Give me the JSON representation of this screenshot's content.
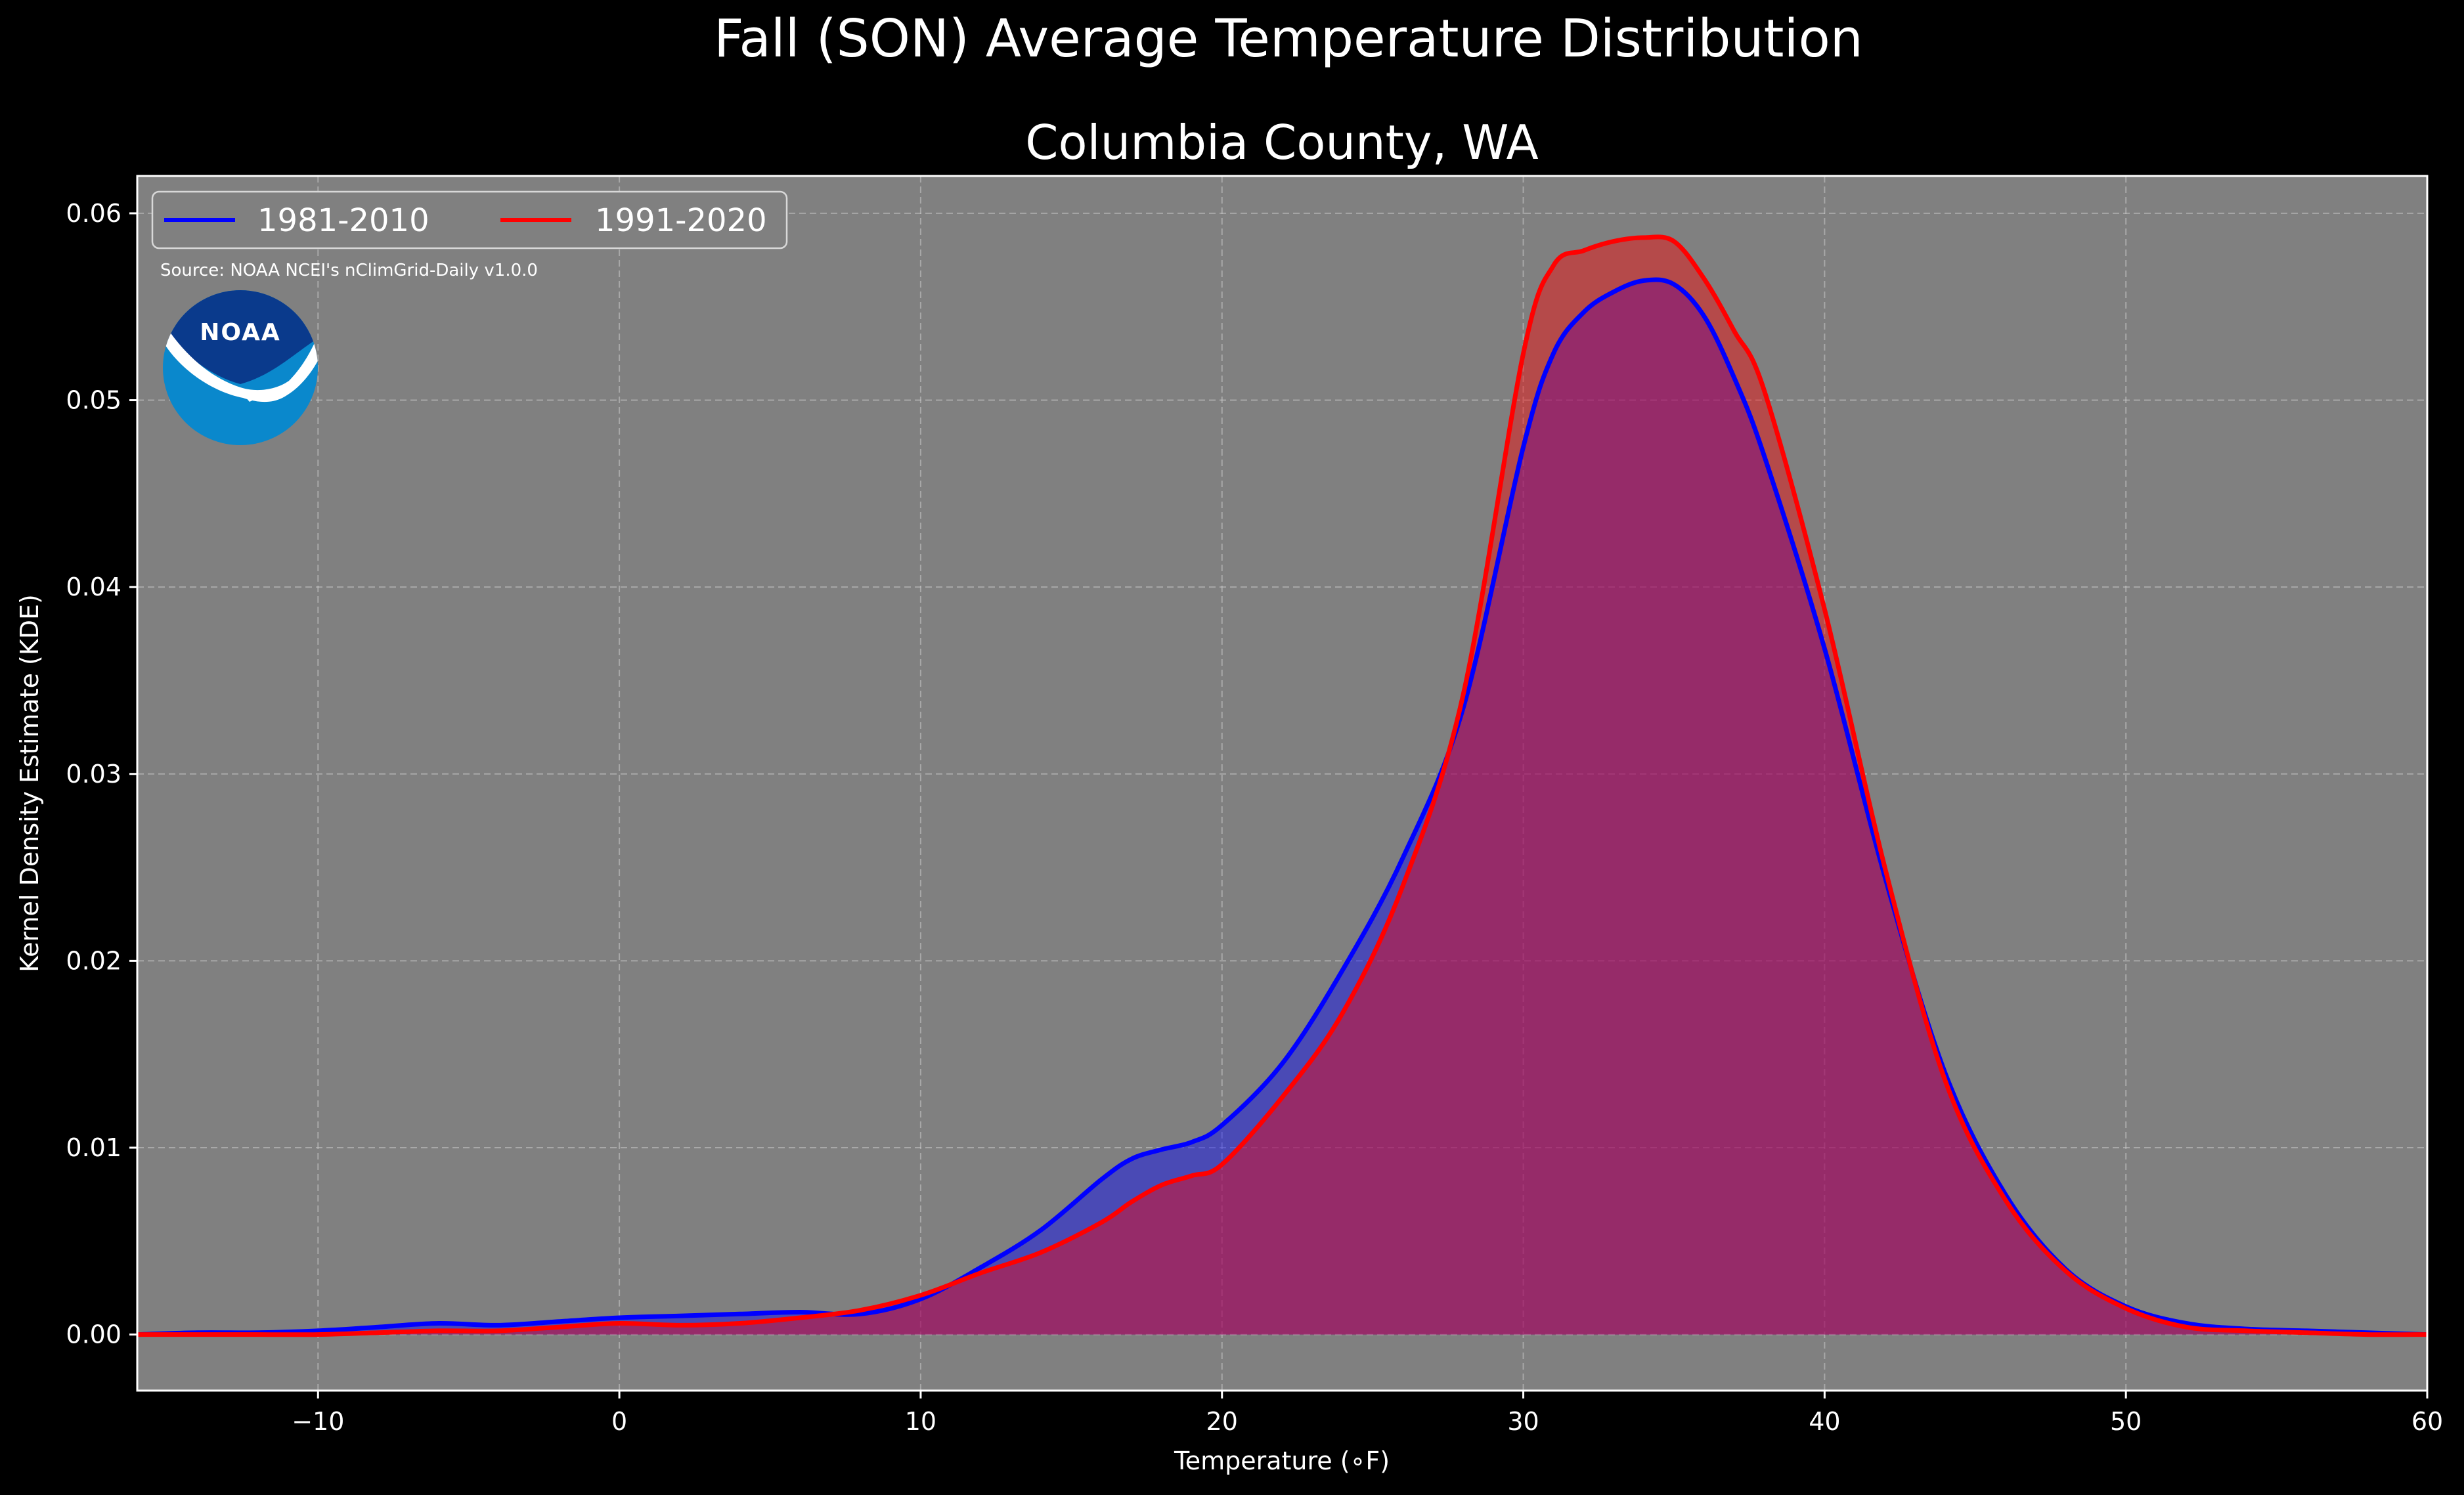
{
  "chart_data": {
    "type": "area",
    "suptitle": "Fall (SON) Average Temperature Distribution",
    "title": "Columbia County, WA",
    "xlabel": "Temperature (∘F)",
    "ylabel": "Kernel Density Estimate (KDE)",
    "xlim": [
      -16,
      60
    ],
    "ylim": [
      -0.003,
      0.062
    ],
    "xticks": [
      -10,
      0,
      10,
      20,
      30,
      40,
      50,
      60
    ],
    "xtick_labels": [
      "−10",
      "0",
      "10",
      "20",
      "30",
      "40",
      "50",
      "60"
    ],
    "yticks": [
      0.0,
      0.01,
      0.02,
      0.03,
      0.04,
      0.05,
      0.06
    ],
    "ytick_labels": [
      "0.00",
      "0.01",
      "0.02",
      "0.03",
      "0.04",
      "0.05",
      "0.06"
    ],
    "grid": true,
    "legend_placement": "top-left",
    "source": "Source: NOAA NCEI's nClimGrid-Daily v1.0.0",
    "logo_text": "NOAA",
    "colors": {
      "background": "#000000",
      "plot_background": "#808080",
      "series_1981": "#0000ff",
      "series_1991": "#ff0000",
      "logo_dark": "#0a3a8c",
      "logo_light": "#0a88cc"
    },
    "series": [
      {
        "name": "1981-2010",
        "color": "#0000ff",
        "x": [
          -16,
          -14,
          -12,
          -10,
          -8,
          -6,
          -4,
          -2,
          0,
          2,
          4,
          6,
          8,
          10,
          12,
          14,
          16,
          17,
          18,
          19,
          20,
          22,
          24,
          26,
          28,
          30,
          31,
          32,
          33,
          34,
          35,
          36,
          37,
          38,
          40,
          42,
          44,
          46,
          48,
          50,
          52,
          54,
          56,
          58,
          60
        ],
        "y": [
          0.0,
          0.0001,
          0.0001,
          0.0002,
          0.0004,
          0.0006,
          0.0005,
          0.0007,
          0.0009,
          0.001,
          0.0011,
          0.0012,
          0.0011,
          0.0019,
          0.0036,
          0.0056,
          0.0083,
          0.0094,
          0.0099,
          0.0103,
          0.0112,
          0.0145,
          0.0195,
          0.0255,
          0.0335,
          0.0475,
          0.0525,
          0.0547,
          0.0558,
          0.0564,
          0.0562,
          0.0545,
          0.0512,
          0.047,
          0.0367,
          0.0245,
          0.014,
          0.0075,
          0.0035,
          0.0015,
          0.0006,
          0.0003,
          0.0002,
          0.0001,
          0.0
        ]
      },
      {
        "name": "1991-2020",
        "color": "#ff0000",
        "x": [
          -16,
          -14,
          -12,
          -10,
          -8,
          -6,
          -4,
          -2,
          0,
          2,
          4,
          6,
          8,
          10,
          12,
          14,
          16,
          17,
          18,
          19,
          20,
          22,
          24,
          26,
          28,
          30,
          31,
          32,
          33,
          34,
          35,
          36,
          37,
          38,
          40,
          42,
          44,
          46,
          48,
          50,
          52,
          54,
          56,
          58,
          60
        ],
        "y": [
          0.0,
          0.0,
          0.0,
          0.0,
          0.0001,
          0.0002,
          0.0002,
          0.0004,
          0.0006,
          0.0005,
          0.0006,
          0.0009,
          0.0013,
          0.0021,
          0.0033,
          0.0044,
          0.006,
          0.0071,
          0.008,
          0.0085,
          0.0091,
          0.0127,
          0.0172,
          0.024,
          0.0342,
          0.0525,
          0.0572,
          0.058,
          0.0585,
          0.0587,
          0.0585,
          0.0565,
          0.0537,
          0.0505,
          0.0388,
          0.025,
          0.0136,
          0.0072,
          0.0034,
          0.0014,
          0.0004,
          0.0002,
          0.0001,
          0.0,
          0.0
        ]
      }
    ]
  }
}
